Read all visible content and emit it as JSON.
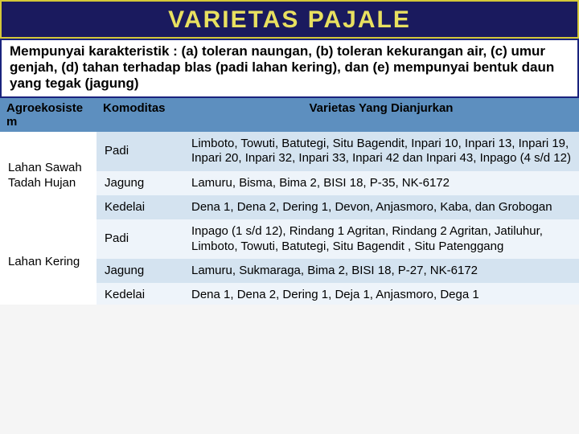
{
  "title": "VARIETAS PAJALE",
  "subtitle": "Mempunyai karakteristik : (a) toleran naungan, (b) toleran kekurangan air, (c) umur genjah, (d) tahan terhadap blas (padi lahan kering), dan (e) mempunyai bentuk daun yang tegak (jagung)",
  "columns": {
    "agroekosistem": "Agroekosiste m",
    "komoditas": "Komoditas",
    "varietas": "Varietas Yang Dianjurkan"
  },
  "groups": [
    {
      "agroekosistem": "Lahan Sawah Tadah Hujan",
      "rows": [
        {
          "komoditas": "Padi",
          "varietas": "Limboto, Towuti, Batutegi, Situ Bagendit, Inpari 10, Inpari 13, Inpari 19, Inpari 20, Inpari 32, Inpari 33, Inpari 42 dan Inpari 43, Inpago (4 s/d 12)"
        },
        {
          "komoditas": "Jagung",
          "varietas": "Lamuru, Bisma, Bima 2, BISI 18, P-35, NK-6172"
        },
        {
          "komoditas": "Kedelai",
          "varietas": "Dena 1, Dena 2, Dering 1,  Devon, Anjasmoro, Kaba, dan Grobogan"
        }
      ]
    },
    {
      "agroekosistem": "Lahan Kering",
      "rows": [
        {
          "komoditas": "Padi",
          "varietas": "Inpago (1 s/d 12), Rindang 1 Agritan, Rindang 2 Agritan, Jatiluhur, Limboto, Towuti, Batutegi, Situ Bagendit , Situ Patenggang"
        },
        {
          "komoditas": "Jagung",
          "varietas": "Lamuru, Sukmaraga, Bima 2, BISI 18, P-27, NK-6172"
        },
        {
          "komoditas": "Kedelai",
          "varietas": "Dena 1, Dena 2, Dering 1,  Deja 1, Anjasmoro, Dega 1"
        }
      ]
    }
  ],
  "colors": {
    "title_bg": "#1a1a5e",
    "title_border": "#d4c838",
    "title_text": "#e8e060",
    "header_row": "#5d8fbf",
    "band_a": "#d4e3f0",
    "band_b": "#eef4fa"
  }
}
